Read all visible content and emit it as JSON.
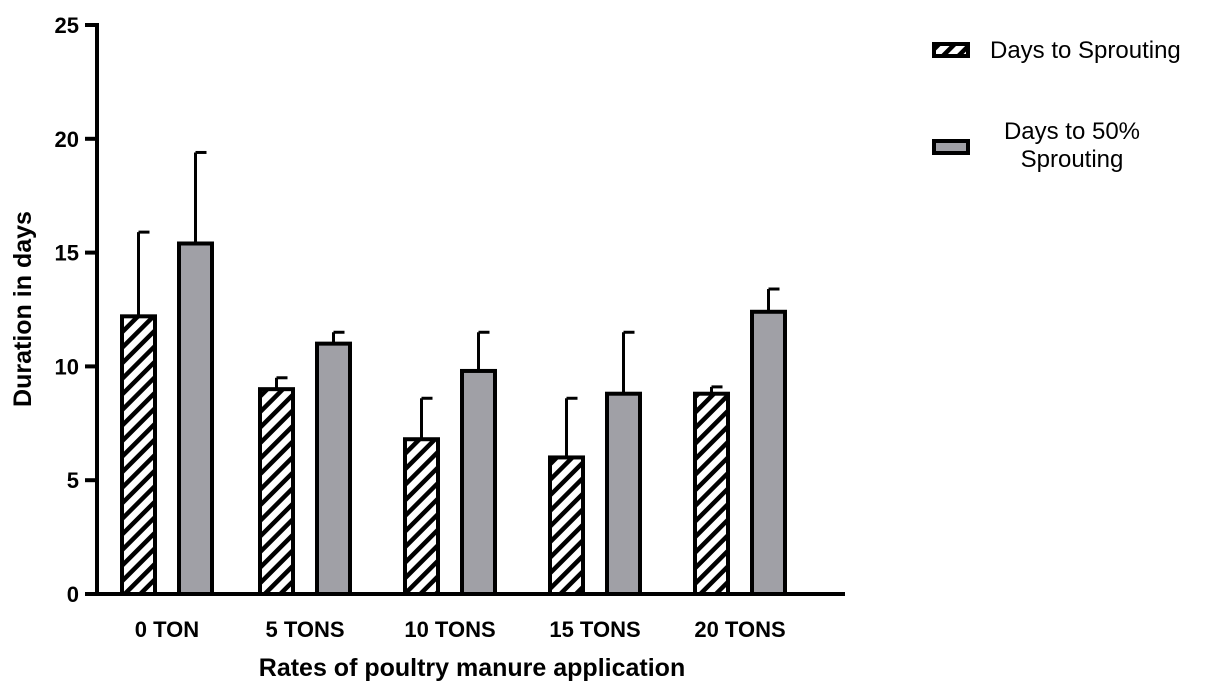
{
  "chart_data": {
    "type": "bar",
    "title": "",
    "xlabel": "Rates of poultry manure application",
    "ylabel": "Duration in days",
    "ylim": [
      0,
      25
    ],
    "yticks": [
      0,
      5,
      10,
      15,
      20,
      25
    ],
    "categories": [
      "0 TON",
      "5 TONS",
      "10 TONS",
      "15 TONS",
      "20 TONS"
    ],
    "series": [
      {
        "name": "Days to Sprouting",
        "values": [
          12.2,
          9.0,
          6.8,
          6.0,
          8.8
        ],
        "error": [
          3.7,
          0.5,
          1.8,
          2.6,
          0.3
        ],
        "fill": "hatched",
        "color": "#ffffff"
      },
      {
        "name": "Days to 50% Sprouting",
        "legend_lines": [
          "Days to 50%",
          "Sprouting"
        ],
        "values": [
          15.4,
          11.0,
          9.8,
          8.8,
          12.4
        ],
        "error": [
          4.0,
          0.5,
          1.7,
          2.7,
          1.0
        ],
        "fill": "solid",
        "color": "#a0a0a6"
      }
    ],
    "legend_position": "top-right",
    "grid": false
  }
}
